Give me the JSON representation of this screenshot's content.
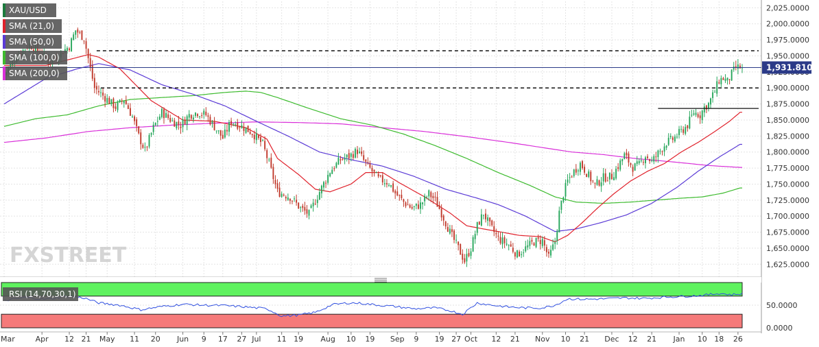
{
  "symbol": "XAU/USD",
  "watermark": "FXSTREET",
  "colors": {
    "bull": "#26a65b",
    "bear": "#c0392b",
    "sma21": "#e0222c",
    "sma50": "#5b3bd6",
    "sma100": "#3dbb2e",
    "sma200": "#d92fd9",
    "rsi": "#2f4fe0",
    "price_line": "#2b3a88",
    "rsi_overbought_fill": "#5ff25f",
    "rsi_oversold_fill": "#f57a7a"
  },
  "legend": [
    {
      "label": "SMA (21,0)",
      "color": "#e0222c"
    },
    {
      "label": "SMA (50,0)",
      "color": "#5b3bd6"
    },
    {
      "label": "SMA (100,0)",
      "color": "#3dbb2e"
    },
    {
      "label": "SMA (200,0)",
      "color": "#d92fd9"
    }
  ],
  "price_tag": "1,931.8100",
  "rsi_label": "RSI (14,70,30,1)",
  "chart_data": {
    "type": "candlestick",
    "price_axis": {
      "range": [
        1605,
        2035
      ],
      "ticks": [
        "2,025.0000",
        "2,000.0000",
        "1,975.0000",
        "1,950.0000",
        "1,925.0000",
        "1,900.0000",
        "1,875.0000",
        "1,850.0000",
        "1,825.0000",
        "1,800.0000",
        "1,775.0000",
        "1,750.0000",
        "1,725.0000",
        "1,700.0000",
        "1,675.0000",
        "1,650.0000",
        "1,625.0000"
      ],
      "tick_values": [
        2025,
        2000,
        1975,
        1950,
        1925,
        1900,
        1875,
        1850,
        1825,
        1800,
        1775,
        1750,
        1725,
        1700,
        1675,
        1650,
        1625
      ]
    },
    "x_axis": {
      "labels": [
        "Mar",
        "Apr",
        "12",
        "21",
        "May",
        "11",
        "20",
        "Jun",
        "9",
        "17",
        "27",
        "Jul",
        "11",
        "19",
        "Aug",
        "10",
        "19",
        "Sep",
        "9",
        "19",
        "27",
        "Oct",
        "12",
        "21",
        "Nov",
        "10",
        "21",
        "Dec",
        "12",
        "21",
        "Jan",
        "10",
        "18",
        "26"
      ],
      "label_index": [
        0,
        18,
        31,
        39,
        49,
        62,
        72,
        85,
        95,
        104,
        113,
        120,
        132,
        140,
        154,
        165,
        174,
        187,
        196,
        207,
        215,
        222,
        234,
        243,
        256,
        267,
        276,
        289,
        299,
        308,
        321,
        332,
        340,
        349
      ]
    },
    "last_price": 1931.81,
    "levels": [
      {
        "value": 1958,
        "style": "dashed"
      },
      {
        "value": 1900,
        "style": "dashed"
      },
      {
        "value": 1868,
        "style": "solid"
      }
    ],
    "price_anchors": [
      [
        0,
        1920
      ],
      [
        6,
        1950
      ],
      [
        12,
        1968
      ],
      [
        18,
        1952
      ],
      [
        22,
        1940
      ],
      [
        27,
        1955
      ],
      [
        31,
        1965
      ],
      [
        34,
        1990
      ],
      [
        38,
        1978
      ],
      [
        41,
        1930
      ],
      [
        43,
        1900
      ],
      [
        48,
        1885
      ],
      [
        53,
        1870
      ],
      [
        57,
        1882
      ],
      [
        61,
        1855
      ],
      [
        64,
        1825
      ],
      [
        67,
        1802
      ],
      [
        71,
        1838
      ],
      [
        75,
        1862
      ],
      [
        80,
        1848
      ],
      [
        84,
        1842
      ],
      [
        88,
        1858
      ],
      [
        92,
        1862
      ],
      [
        96,
        1858
      ],
      [
        101,
        1835
      ],
      [
        104,
        1822
      ],
      [
        108,
        1848
      ],
      [
        113,
        1840
      ],
      [
        118,
        1830
      ],
      [
        123,
        1812
      ],
      [
        126,
        1782
      ],
      [
        130,
        1738
      ],
      [
        136,
        1730
      ],
      [
        141,
        1712
      ],
      [
        145,
        1703
      ],
      [
        150,
        1738
      ],
      [
        155,
        1770
      ],
      [
        160,
        1788
      ],
      [
        164,
        1793
      ],
      [
        168,
        1802
      ],
      [
        172,
        1782
      ],
      [
        178,
        1758
      ],
      [
        183,
        1752
      ],
      [
        186,
        1736
      ],
      [
        190,
        1722
      ],
      [
        194,
        1712
      ],
      [
        198,
        1718
      ],
      [
        202,
        1735
      ],
      [
        205,
        1725
      ],
      [
        208,
        1705
      ],
      [
        212,
        1675
      ],
      [
        216,
        1650
      ],
      [
        219,
        1630
      ],
      [
        222,
        1650
      ],
      [
        225,
        1685
      ],
      [
        228,
        1705
      ],
      [
        231,
        1685
      ],
      [
        235,
        1665
      ],
      [
        240,
        1655
      ],
      [
        244,
        1640
      ],
      [
        248,
        1650
      ],
      [
        252,
        1660
      ],
      [
        256,
        1662
      ],
      [
        259,
        1635
      ],
      [
        262,
        1660
      ],
      [
        264,
        1705
      ],
      [
        266,
        1735
      ],
      [
        268,
        1755
      ],
      [
        271,
        1770
      ],
      [
        274,
        1782
      ],
      [
        277,
        1768
      ],
      [
        281,
        1748
      ],
      [
        285,
        1760
      ],
      [
        289,
        1762
      ],
      [
        292,
        1778
      ],
      [
        295,
        1795
      ],
      [
        299,
        1776
      ],
      [
        302,
        1780
      ],
      [
        305,
        1795
      ],
      [
        308,
        1785
      ],
      [
        311,
        1798
      ],
      [
        315,
        1815
      ],
      [
        318,
        1820
      ],
      [
        322,
        1832
      ],
      [
        325,
        1842
      ],
      [
        328,
        1862
      ],
      [
        331,
        1858
      ],
      [
        333,
        1870
      ],
      [
        335,
        1875
      ],
      [
        338,
        1895
      ],
      [
        340,
        1912
      ],
      [
        342,
        1915
      ],
      [
        344,
        1910
      ],
      [
        346,
        1922
      ],
      [
        348,
        1932
      ]
    ],
    "sma21": [
      [
        0,
        1935
      ],
      [
        20,
        1935
      ],
      [
        40,
        1952
      ],
      [
        45,
        1948
      ],
      [
        55,
        1930
      ],
      [
        70,
        1880
      ],
      [
        85,
        1850
      ],
      [
        100,
        1848
      ],
      [
        115,
        1838
      ],
      [
        125,
        1820
      ],
      [
        130,
        1790
      ],
      [
        140,
        1765
      ],
      [
        148,
        1742
      ],
      [
        155,
        1738
      ],
      [
        165,
        1750
      ],
      [
        172,
        1768
      ],
      [
        180,
        1768
      ],
      [
        188,
        1752
      ],
      [
        200,
        1730
      ],
      [
        212,
        1705
      ],
      [
        220,
        1685
      ],
      [
        228,
        1680
      ],
      [
        235,
        1676
      ],
      [
        245,
        1670
      ],
      [
        255,
        1668
      ],
      [
        262,
        1660
      ],
      [
        268,
        1670
      ],
      [
        275,
        1690
      ],
      [
        282,
        1712
      ],
      [
        290,
        1735
      ],
      [
        298,
        1755
      ],
      [
        306,
        1770
      ],
      [
        314,
        1782
      ],
      [
        322,
        1800
      ],
      [
        330,
        1815
      ],
      [
        338,
        1832
      ],
      [
        345,
        1848
      ],
      [
        350,
        1862
      ]
    ],
    "sma50": [
      [
        0,
        1875
      ],
      [
        20,
        1915
      ],
      [
        35,
        1930
      ],
      [
        45,
        1938
      ],
      [
        60,
        1928
      ],
      [
        75,
        1905
      ],
      [
        90,
        1890
      ],
      [
        105,
        1872
      ],
      [
        120,
        1848
      ],
      [
        135,
        1825
      ],
      [
        150,
        1800
      ],
      [
        165,
        1788
      ],
      [
        180,
        1778
      ],
      [
        195,
        1762
      ],
      [
        210,
        1742
      ],
      [
        225,
        1728
      ],
      [
        235,
        1718
      ],
      [
        248,
        1700
      ],
      [
        255,
        1688
      ],
      [
        262,
        1676
      ],
      [
        272,
        1680
      ],
      [
        284,
        1690
      ],
      [
        296,
        1702
      ],
      [
        308,
        1720
      ],
      [
        320,
        1745
      ],
      [
        330,
        1770
      ],
      [
        340,
        1792
      ],
      [
        350,
        1812
      ]
    ],
    "sma100": [
      [
        0,
        1840
      ],
      [
        15,
        1852
      ],
      [
        30,
        1858
      ],
      [
        45,
        1872
      ],
      [
        60,
        1882
      ],
      [
        75,
        1885
      ],
      [
        90,
        1888
      ],
      [
        105,
        1893
      ],
      [
        115,
        1895
      ],
      [
        122,
        1893
      ],
      [
        130,
        1885
      ],
      [
        145,
        1868
      ],
      [
        160,
        1852
      ],
      [
        175,
        1842
      ],
      [
        190,
        1828
      ],
      [
        205,
        1810
      ],
      [
        220,
        1790
      ],
      [
        235,
        1768
      ],
      [
        250,
        1748
      ],
      [
        262,
        1730
      ],
      [
        272,
        1722
      ],
      [
        285,
        1720
      ],
      [
        298,
        1722
      ],
      [
        310,
        1725
      ],
      [
        322,
        1728
      ],
      [
        332,
        1730
      ],
      [
        342,
        1736
      ],
      [
        350,
        1744
      ]
    ],
    "sma200": [
      [
        0,
        1815
      ],
      [
        20,
        1822
      ],
      [
        40,
        1832
      ],
      [
        60,
        1838
      ],
      [
        80,
        1842
      ],
      [
        100,
        1845
      ],
      [
        120,
        1847
      ],
      [
        140,
        1846
      ],
      [
        160,
        1844
      ],
      [
        180,
        1838
      ],
      [
        200,
        1832
      ],
      [
        220,
        1824
      ],
      [
        240,
        1815
      ],
      [
        258,
        1806
      ],
      [
        270,
        1800
      ],
      [
        285,
        1796
      ],
      [
        300,
        1790
      ],
      [
        320,
        1784
      ],
      [
        335,
        1779
      ],
      [
        350,
        1776
      ]
    ],
    "rsi": {
      "range": [
        0,
        100
      ],
      "ticks": [
        "50.0000",
        "0.0000"
      ],
      "tick_values": [
        50,
        0
      ],
      "overbought": 70,
      "oversold": 30,
      "anchors": [
        [
          0,
          60
        ],
        [
          10,
          67
        ],
        [
          20,
          63
        ],
        [
          30,
          70
        ],
        [
          38,
          66
        ],
        [
          45,
          55
        ],
        [
          55,
          50
        ],
        [
          65,
          40
        ],
        [
          75,
          47
        ],
        [
          85,
          52
        ],
        [
          95,
          50
        ],
        [
          105,
          49
        ],
        [
          115,
          46
        ],
        [
          125,
          42
        ],
        [
          132,
          26
        ],
        [
          140,
          28
        ],
        [
          148,
          34
        ],
        [
          156,
          51
        ],
        [
          164,
          55
        ],
        [
          170,
          54
        ],
        [
          178,
          50
        ],
        [
          186,
          47
        ],
        [
          195,
          42
        ],
        [
          205,
          44
        ],
        [
          212,
          38
        ],
        [
          218,
          30
        ],
        [
          225,
          55
        ],
        [
          232,
          50
        ],
        [
          240,
          46
        ],
        [
          248,
          44
        ],
        [
          256,
          44
        ],
        [
          262,
          50
        ],
        [
          268,
          64
        ],
        [
          276,
          63
        ],
        [
          285,
          64
        ],
        [
          295,
          66
        ],
        [
          305,
          65
        ],
        [
          315,
          68
        ],
        [
          325,
          70
        ],
        [
          333,
          72
        ],
        [
          340,
          76
        ],
        [
          346,
          73
        ],
        [
          350,
          75
        ]
      ]
    }
  }
}
